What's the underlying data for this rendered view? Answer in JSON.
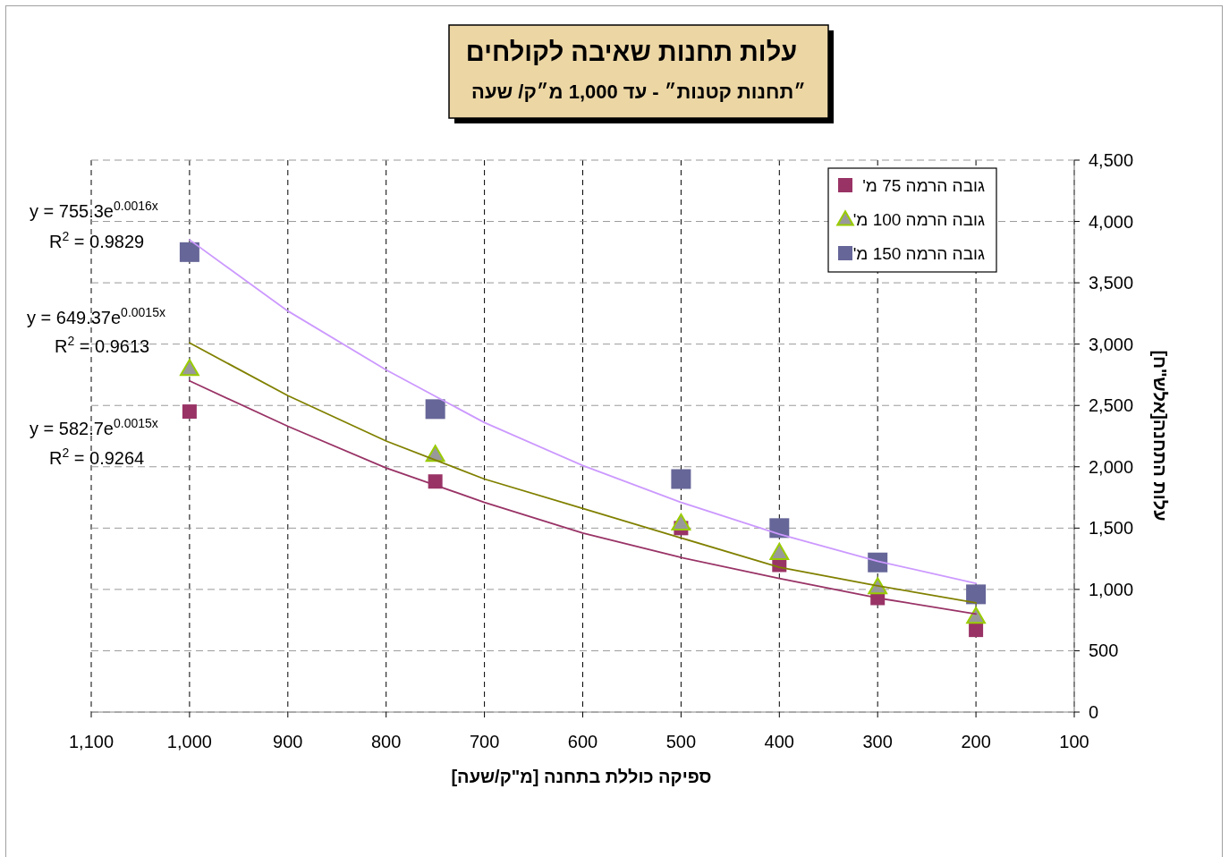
{
  "chart_data": {
    "type": "scatter",
    "title": "עלות תחנות שאיבה לקולחים",
    "subtitle": "״תחנות קטנות״ - עד 1,000 מ״ק/ שעה",
    "xlabel": "ספיקה כוללת בתחנה [מ\"ק/שעה]",
    "ylabel": "עלות התחנה[אלש\"ח]",
    "x": [
      1000,
      750,
      500,
      400,
      300,
      200
    ],
    "xlim": [
      1100,
      100
    ],
    "xticks": [
      {
        "value": 1100,
        "label": "1,100"
      },
      {
        "value": 1000,
        "label": "1,000"
      },
      900,
      800,
      700,
      600,
      500,
      400,
      300,
      200,
      100
    ],
    "ylim": [
      0,
      4500
    ],
    "yticks": [
      0,
      500,
      {
        "value": 1000,
        "label": "1,000"
      },
      {
        "value": 1500,
        "label": "1,500"
      },
      {
        "value": 2000,
        "label": "2,000"
      },
      {
        "value": 2500,
        "label": "2,500"
      },
      {
        "value": 3000,
        "label": "3,000"
      },
      {
        "value": 3500,
        "label": "3,500"
      },
      {
        "value": 4000,
        "label": "4,000"
      },
      {
        "value": 4500,
        "label": "4,500"
      }
    ],
    "grid": true,
    "legend": "top right",
    "series": [
      {
        "name": "גובה הרמה 75 מ'",
        "color": "#993366",
        "marker": "square",
        "values": [
          2450,
          1880,
          1500,
          1200,
          930,
          670
        ]
      },
      {
        "name": "גובה הרמה 100 מ'",
        "color": "#999999",
        "marker": "triangle",
        "values": [
          2800,
          2100,
          1540,
          1300,
          1020,
          780
        ]
      },
      {
        "name": "גובה הרמה 150 מ'",
        "color": "#666699",
        "marker": "square",
        "values": [
          3750,
          2470,
          1900,
          1500,
          1220,
          960
        ]
      },
      {
        "type": "line",
        "color": "#993366",
        "x": [
          1000,
          900,
          800,
          700,
          600,
          500,
          400,
          300,
          200
        ],
        "values": [
          2700,
          2330,
          1990,
          1710,
          1460,
          1260,
          1090,
          930,
          800
        ]
      },
      {
        "type": "line",
        "color": "#808000",
        "x": [
          1000,
          900,
          800,
          700,
          600,
          500,
          400,
          300,
          200
        ],
        "values": [
          3010,
          2580,
          2210,
          1900,
          1660,
          1420,
          1180,
          1030,
          890
        ]
      },
      {
        "type": "line",
        "color": "#cc99ff",
        "x": [
          1000,
          900,
          800,
          700,
          600,
          500,
          400,
          300,
          200
        ],
        "values": [
          3850,
          3270,
          2790,
          2360,
          2010,
          1710,
          1450,
          1230,
          1050
        ]
      }
    ],
    "annotations": [
      "y = 755.3e$^{0.0016x}$",
      "R$^{2}$ = 0.9829",
      "y = 649.37e$^{0.0015x}$",
      "R$^{2}$ = 0.9613",
      "y = 582.7e$^{0.0015x}$",
      "R$^{2}$ = 0.9264"
    ]
  }
}
